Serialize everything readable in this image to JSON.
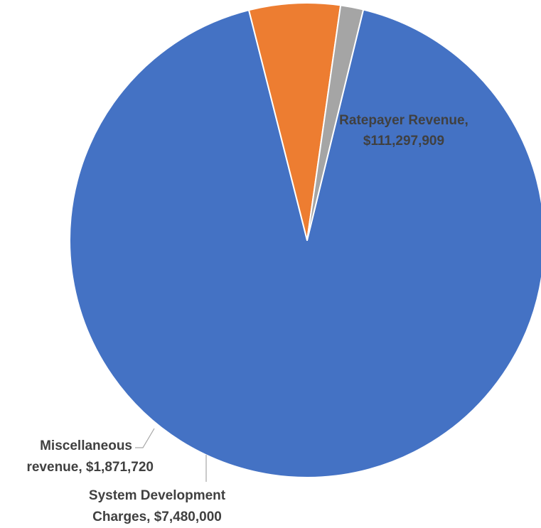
{
  "chart_data": {
    "type": "pie",
    "title": "",
    "slices": [
      {
        "label": "Ratepayer Revenue",
        "value": 111297909,
        "display_value": "$111,297,909",
        "color": "#4472C4"
      },
      {
        "label": "System Development Charges",
        "value": 7480000,
        "display_value": "$7,480,000",
        "color": "#ED7D31"
      },
      {
        "label": "Miscellaneous revenue",
        "value": 1871720,
        "display_value": "$1,871,720",
        "color": "#A5A5A5"
      }
    ],
    "data_labels": {
      "ratepayer": {
        "line1": "Ratepayer Revenue,",
        "line2": "$111,297,909"
      },
      "sdc": {
        "line1": "System Development",
        "line2": "Charges, $7,480,000"
      },
      "misc": {
        "line1": "Miscellaneous",
        "line2": "revenue, $1,871,720"
      }
    },
    "legend": "none",
    "start_angle_deg": 13.7,
    "direction": "clockwise"
  }
}
